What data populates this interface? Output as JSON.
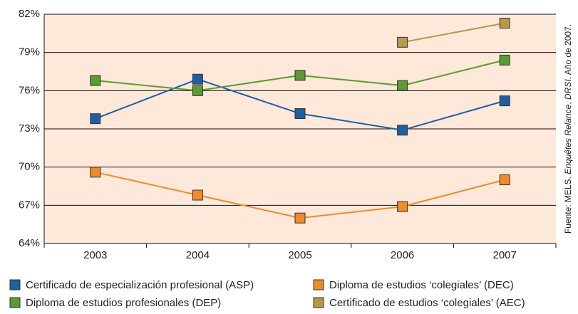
{
  "chart_data": {
    "type": "line",
    "categories": [
      "2003",
      "2004",
      "2005",
      "2006",
      "2007"
    ],
    "series": [
      {
        "name": "Certificado de especialización profesional (ASP)",
        "color": "#1f5fa0",
        "values": [
          73.8,
          76.9,
          74.2,
          72.9,
          75.2
        ]
      },
      {
        "name": "Diploma de estudios profesionales (DEP)",
        "color": "#5c9a32",
        "values": [
          76.8,
          76.0,
          77.2,
          76.4,
          78.4
        ]
      },
      {
        "name": "Diploma de estudios ‘colegiales’ (DEC)",
        "color": "#f08a2a",
        "values": [
          69.6,
          67.8,
          66.0,
          66.9,
          69.0
        ]
      },
      {
        "name": "Certificado de estudios ‘colegiales’ (AEC)",
        "color": "#b8984a",
        "values": [
          null,
          null,
          null,
          79.8,
          81.3
        ]
      }
    ],
    "ylim": [
      64,
      82
    ],
    "yticks": [
      {
        "value": 64,
        "label": "64%"
      },
      {
        "value": 67,
        "label": "67%"
      },
      {
        "value": 70,
        "label": "70%"
      },
      {
        "value": 73,
        "label": "73%"
      },
      {
        "value": 76,
        "label": "76%"
      },
      {
        "value": 79,
        "label": "79%"
      },
      {
        "value": 82,
        "label": "82%"
      }
    ],
    "grid": true,
    "source": [
      "Fuente: MELS. ",
      "Enquêtes Relance",
      ", ",
      "DRSI",
      ". Año de 2007."
    ]
  }
}
